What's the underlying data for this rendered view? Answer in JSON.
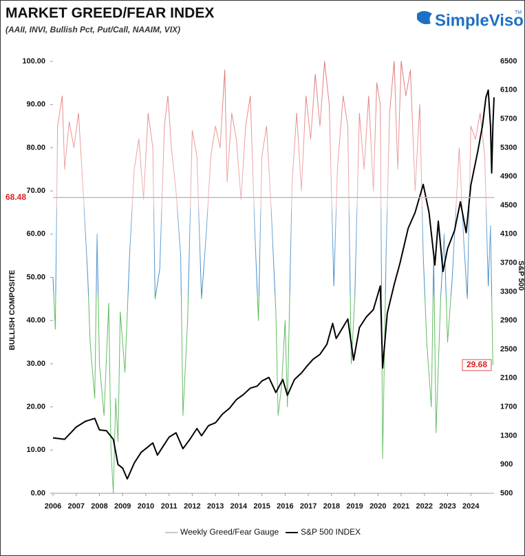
{
  "chart_data": {
    "type": "line",
    "title": "MARKET GREED/FEAR INDEX",
    "subtitle": "(AAII, INVI, Bullish Pct, Put/Call, NAAIM, VIX)",
    "logo": "SimpleVisor",
    "logo_mark": "TM",
    "ylabel": "BULLISH COMPOSITE",
    "y2label": "S&P 500",
    "xlim": [
      2006,
      2025
    ],
    "xticks": [
      2006,
      2007,
      2008,
      2009,
      2010,
      2011,
      2012,
      2013,
      2014,
      2015,
      2016,
      2017,
      2018,
      2019,
      2020,
      2021,
      2022,
      2023,
      2024
    ],
    "ylim": [
      0,
      100
    ],
    "yticks": [
      {
        "value": 0,
        "label": "0.00"
      },
      {
        "value": 10,
        "label": "10.00"
      },
      {
        "value": 20,
        "label": "20.00"
      },
      {
        "value": 30,
        "label": "30.00"
      },
      {
        "value": 40,
        "label": "40.00"
      },
      {
        "value": 50,
        "label": "50.00"
      },
      {
        "value": 60,
        "label": "60.00"
      },
      {
        "value": 70,
        "label": "70.00"
      },
      {
        "value": 80,
        "label": "80.00"
      },
      {
        "value": 90,
        "label": "90.00"
      },
      {
        "value": 100,
        "label": "100.00"
      }
    ],
    "y2lim": [
      500,
      6500
    ],
    "y2ticks": [
      500,
      900,
      1300,
      1700,
      2100,
      2500,
      2900,
      3300,
      3700,
      4100,
      4500,
      4900,
      5300,
      5700,
      6100,
      6500
    ],
    "annotations": [
      {
        "text": "68.48",
        "y": 68.48
      },
      {
        "text": "29.68",
        "y": 29.68
      }
    ],
    "series": [
      {
        "name": "Weekly Greed/Fear Gauge",
        "color": "#c8c8c8",
        "x": [
          2006.0,
          2006.1,
          2006.2,
          2006.4,
          2006.5,
          2006.7,
          2006.9,
          2007.1,
          2007.3,
          2007.5,
          2007.6,
          2007.8,
          2007.9,
          2008.0,
          2008.2,
          2008.4,
          2008.5,
          2008.6,
          2008.7,
          2008.8,
          2008.9,
          2009.1,
          2009.3,
          2009.5,
          2009.7,
          2009.9,
          2010.1,
          2010.3,
          2010.4,
          2010.6,
          2010.8,
          2010.95,
          2011.1,
          2011.3,
          2011.5,
          2011.6,
          2011.8,
          2012.0,
          2012.2,
          2012.4,
          2012.6,
          2012.8,
          2013.0,
          2013.2,
          2013.4,
          2013.5,
          2013.7,
          2013.9,
          2014.1,
          2014.3,
          2014.5,
          2014.7,
          2014.85,
          2015.0,
          2015.2,
          2015.4,
          2015.6,
          2015.7,
          2015.85,
          2016.0,
          2016.1,
          2016.3,
          2016.5,
          2016.7,
          2016.9,
          2017.1,
          2017.3,
          2017.5,
          2017.7,
          2017.9,
          2018.1,
          2018.25,
          2018.5,
          2018.7,
          2018.85,
          2019.0,
          2019.2,
          2019.4,
          2019.6,
          2019.8,
          2019.95,
          2020.1,
          2020.2,
          2020.35,
          2020.5,
          2020.7,
          2020.85,
          2021.0,
          2021.2,
          2021.4,
          2021.6,
          2021.8,
          2021.95,
          2022.1,
          2022.3,
          2022.4,
          2022.5,
          2022.7,
          2022.85,
          2023.0,
          2023.2,
          2023.35,
          2023.5,
          2023.7,
          2023.85,
          2024.0,
          2024.2,
          2024.4,
          2024.6,
          2024.75,
          2024.85,
          2024.95
        ],
        "values": [
          50,
          38,
          85,
          92,
          75,
          86,
          80,
          88,
          70,
          50,
          35,
          22,
          60,
          30,
          18,
          44,
          10,
          0,
          22,
          12,
          42,
          28,
          55,
          75,
          82,
          68,
          88,
          80,
          45,
          52,
          85,
          92,
          80,
          70,
          55,
          18,
          40,
          84,
          78,
          45,
          60,
          78,
          85,
          80,
          98,
          72,
          88,
          82,
          68,
          85,
          92,
          60,
          40,
          78,
          85,
          66,
          42,
          18,
          25,
          40,
          20,
          72,
          88,
          70,
          92,
          82,
          97,
          85,
          100,
          90,
          48,
          75,
          92,
          85,
          30,
          45,
          88,
          75,
          92,
          70,
          95,
          90,
          8,
          55,
          88,
          100,
          75,
          100,
          92,
          98,
          70,
          90,
          55,
          35,
          20,
          55,
          14,
          45,
          60,
          35,
          50,
          65,
          80,
          58,
          45,
          85,
          82,
          88,
          78,
          48,
          62,
          29.68
        ]
      },
      {
        "name": "S&P 500 INDEX",
        "color": "#000000",
        "axis": "y2",
        "x": [
          2006.0,
          2006.5,
          2007.0,
          2007.4,
          2007.8,
          2008.0,
          2008.3,
          2008.6,
          2008.8,
          2009.0,
          2009.2,
          2009.5,
          2009.8,
          2010.0,
          2010.3,
          2010.5,
          2010.8,
          2011.0,
          2011.3,
          2011.6,
          2011.9,
          2012.2,
          2012.4,
          2012.7,
          2013.0,
          2013.3,
          2013.6,
          2013.9,
          2014.2,
          2014.5,
          2014.8,
          2015.0,
          2015.3,
          2015.6,
          2015.9,
          2016.1,
          2016.4,
          2016.7,
          2016.9,
          2017.2,
          2017.5,
          2017.8,
          2018.05,
          2018.2,
          2018.7,
          2018.95,
          2019.2,
          2019.5,
          2019.8,
          2020.1,
          2020.2,
          2020.4,
          2020.7,
          2020.95,
          2021.3,
          2021.6,
          2021.95,
          2022.2,
          2022.45,
          2022.6,
          2022.8,
          2023.0,
          2023.3,
          2023.55,
          2023.8,
          2024.0,
          2024.3,
          2024.5,
          2024.65,
          2024.75,
          2024.85,
          2024.9,
          2024.95,
          2025.0
        ],
        "values": [
          1270,
          1250,
          1420,
          1500,
          1540,
          1380,
          1370,
          1250,
          900,
          850,
          700,
          920,
          1070,
          1120,
          1200,
          1030,
          1180,
          1280,
          1340,
          1120,
          1250,
          1400,
          1300,
          1440,
          1480,
          1600,
          1680,
          1800,
          1870,
          1960,
          1990,
          2060,
          2110,
          1900,
          2080,
          1860,
          2080,
          2170,
          2250,
          2360,
          2430,
          2570,
          2860,
          2650,
          2920,
          2350,
          2800,
          2950,
          3050,
          3380,
          2240,
          3000,
          3400,
          3700,
          4180,
          4400,
          4790,
          4400,
          3670,
          4280,
          3580,
          3900,
          4150,
          4550,
          4120,
          4780,
          5250,
          5600,
          6000,
          6100,
          5600,
          4950,
          5600,
          6000
        ]
      }
    ]
  }
}
